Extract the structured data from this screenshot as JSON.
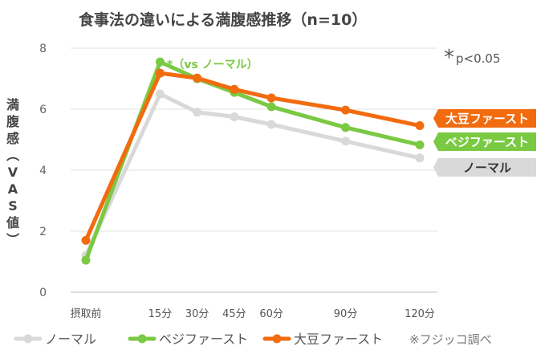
{
  "chart_data": {
    "type": "line",
    "title": "食事法の違いによる満腹感推移（n=10）",
    "ylabel": "満腹感（VAS値）",
    "ylim": [
      0,
      8
    ],
    "yticks": [
      "0",
      "2",
      "4",
      "6",
      "8"
    ],
    "grid": true,
    "categories": [
      "摂取前",
      "15分",
      "30分",
      "45分",
      "60分",
      "90分",
      "120分"
    ],
    "x_minutes": [
      -15,
      15,
      30,
      45,
      60,
      90,
      120
    ],
    "series": [
      {
        "name": "ノーマル",
        "color": "#d9d9d9",
        "values": [
          1.2,
          6.5,
          5.9,
          5.75,
          5.5,
          4.95,
          4.4
        ]
      },
      {
        "name": "ベジファースト",
        "color": "#7ac943",
        "values": [
          1.05,
          7.55,
          7.0,
          6.55,
          6.08,
          5.4,
          4.83
        ]
      },
      {
        "name": "大豆ファースト",
        "color": "#f26b0f",
        "values": [
          1.7,
          7.18,
          7.02,
          6.65,
          6.37,
          5.97,
          5.46
        ]
      }
    ],
    "end_labels": [
      {
        "text": "大豆ファースト",
        "color": "#f26b0f"
      },
      {
        "text": "ベジファースト",
        "color": "#7ac943"
      },
      {
        "text": "ノーマル",
        "color": "#d9d9d9",
        "text_color": "#333333"
      }
    ],
    "annotation": "*（vs ノーマル）",
    "significance": {
      "star": "*",
      "text": "p<0.05"
    },
    "legend": [
      "ノーマル",
      "ベジファースト",
      "大豆ファースト"
    ],
    "legend_position": "bottom",
    "source": "※フジッコ調べ"
  }
}
